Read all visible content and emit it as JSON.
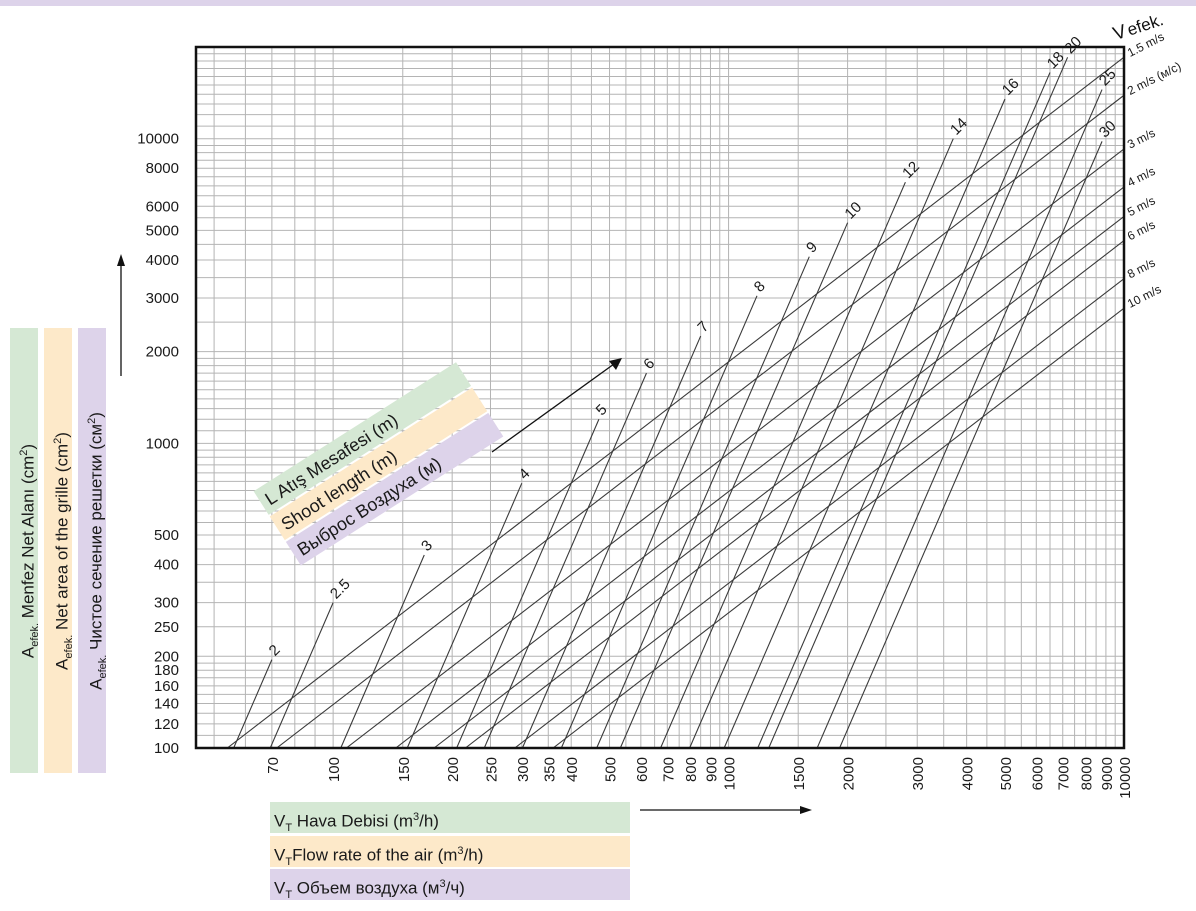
{
  "colors": {
    "green": "#d5e8d4",
    "orange": "#fde9c9",
    "purple": "#ddd3ea",
    "grid": "#b4b4b4",
    "line": "#3a3a3a"
  },
  "y_axis_labels": [
    {
      "prefix": "A",
      "sub": "efek.",
      "text": " Menfez Net Alanı (cm",
      "sup": "2",
      "suffix": ")"
    },
    {
      "prefix": "A",
      "sub": "efek.",
      "text": " Net area of the grille (cm",
      "sup": "2",
      "suffix": ")"
    },
    {
      "prefix": "A",
      "sub": "efek.",
      "text": " Чистое сечение решетки  (cм",
      "sup": "2",
      "suffix": ")"
    }
  ],
  "x_axis_labels": [
    {
      "prefix": "V",
      "sub": "T",
      "text": " Hava Debisi (m",
      "sup": "3",
      "suffix": "/h)"
    },
    {
      "prefix": "V",
      "sub": "T",
      "text": "Flow rate of the air (m",
      "sup": "3",
      "suffix": "/h)"
    },
    {
      "prefix": "V",
      "sub": "T",
      "text": " Объем воздуха (м",
      "sup": "3",
      "suffix": "/ч)"
    }
  ],
  "shoot_labels": [
    "L Atış Mesafesi (m)",
    "Shoot length (m)",
    "Выброс Воздуха (м)"
  ],
  "v_efek_title": {
    "main": "V",
    "sub": "efek."
  },
  "chart_data": {
    "type": "line",
    "x_scale": "log",
    "y_scale": "log",
    "xlim": [
      45,
      10000
    ],
    "ylim": [
      100,
      20000
    ],
    "x_ticks": [
      "70",
      "100",
      "150",
      "200",
      "250",
      "300",
      "350",
      "400",
      "500",
      "600",
      "700",
      "800",
      "900",
      "1000",
      "1500",
      "2000",
      "3000",
      "4000",
      "5000",
      "6000",
      "7000",
      "8000",
      "9000",
      "10000"
    ],
    "y_ticks": [
      "100",
      "120",
      "140",
      "160",
      "180",
      "200",
      "250",
      "300",
      "400",
      "500",
      "1000",
      "2000",
      "3000",
      "4000",
      "5000",
      "6000",
      "8000",
      "10000"
    ],
    "velocity_lines": [
      {
        "label": "1.5 m/s",
        "v": 1.5
      },
      {
        "label": "2 m/s (м/с)",
        "v": 2
      },
      {
        "label": "3 m/s",
        "v": 3
      },
      {
        "label": "4 m/s",
        "v": 4
      },
      {
        "label": "5 m/s",
        "v": 5
      },
      {
        "label": "6 m/s",
        "v": 6
      },
      {
        "label": "8 m/s",
        "v": 8
      },
      {
        "label": "10 m/s",
        "v": 10
      }
    ],
    "shoot_lines": [
      {
        "label": "2",
        "end": [
          70,
          195
        ]
      },
      {
        "label": "2.5",
        "end": [
          100,
          300
        ]
      },
      {
        "label": "3",
        "end": [
          170,
          430
        ]
      },
      {
        "label": "4",
        "end": [
          300,
          740
        ]
      },
      {
        "label": "5",
        "end": [
          470,
          1200
        ]
      },
      {
        "label": "6",
        "end": [
          620,
          1700
        ]
      },
      {
        "label": "7",
        "end": [
          850,
          2250
        ]
      },
      {
        "label": "8",
        "end": [
          1180,
          3050
        ]
      },
      {
        "label": "9",
        "end": [
          1600,
          4100
        ]
      },
      {
        "label": "10",
        "end": [
          2000,
          5300
        ]
      },
      {
        "label": "12",
        "end": [
          2800,
          7200
        ]
      },
      {
        "label": "14",
        "end": [
          3700,
          10000
        ]
      },
      {
        "label": "16",
        "end": [
          5000,
          13500
        ]
      },
      {
        "label": "18",
        "end": [
          6500,
          16500
        ]
      },
      {
        "label": "20",
        "end": [
          7200,
          18500
        ]
      },
      {
        "label": "25",
        "end": [
          8800,
          14500
        ]
      },
      {
        "label": "30",
        "end": [
          8800,
          9800
        ]
      }
    ]
  }
}
